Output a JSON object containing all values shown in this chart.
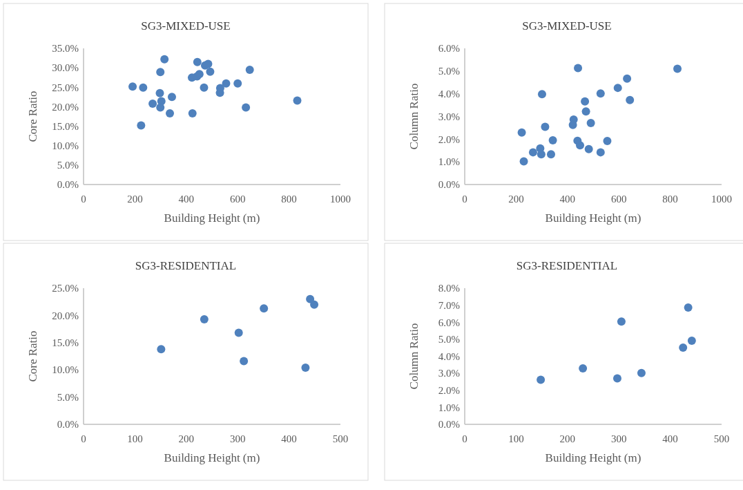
{
  "chart_data": [
    {
      "type": "scatter",
      "title": "SG3-MIXED-USE",
      "xlabel": "Building Height (m)",
      "ylabel": "Core Ratio",
      "marker": "circle",
      "xlim": [
        0,
        1000
      ],
      "xticks": [
        0,
        200,
        400,
        600,
        800,
        1000
      ],
      "ylim": [
        0,
        35
      ],
      "yticks": [
        {
          "value": 0,
          "label": "0.0%"
        },
        {
          "value": 5,
          "label": "5.0%"
        },
        {
          "value": 10,
          "label": "10.0%"
        },
        {
          "value": 15,
          "label": "15.0%"
        },
        {
          "value": 20,
          "label": "20.0%"
        },
        {
          "value": 25,
          "label": "25.0%"
        },
        {
          "value": 30,
          "label": "30.0%"
        },
        {
          "value": 35,
          "label": "35.0%"
        }
      ],
      "series": [
        {
          "color": "#4f81bd",
          "x": [
            191,
            232,
            315,
            299,
            297,
            269,
            303,
            299,
            344,
            336,
            224,
            443,
            422,
            442,
            451,
            473,
            485,
            493,
            469,
            424,
            532,
            531,
            555,
            600,
            647,
            632,
            832
          ],
          "values": [
            25.2,
            24.9,
            32.2,
            28.9,
            23.5,
            20.8,
            21.4,
            19.8,
            22.5,
            18.3,
            15.2,
            31.5,
            27.5,
            27.8,
            28.4,
            30.6,
            31.0,
            29.0,
            24.9,
            18.3,
            24.8,
            23.6,
            26.0,
            26.0,
            29.5,
            19.8,
            21.6
          ]
        }
      ]
    },
    {
      "type": "scatter",
      "title": "SG3-MIXED-USE",
      "xlabel": "Building Height (m)",
      "ylabel": "Column Ratio",
      "marker": "circle",
      "xlim": [
        0,
        1000
      ],
      "xticks": [
        0,
        200,
        400,
        600,
        800,
        1000
      ],
      "ylim": [
        0,
        6
      ],
      "yticks": [
        {
          "value": 0,
          "label": "0.0%"
        },
        {
          "value": 1,
          "label": "1.0%"
        },
        {
          "value": 2,
          "label": "2.0%"
        },
        {
          "value": 3,
          "label": "3.0%"
        },
        {
          "value": 4,
          "label": "4.0%"
        },
        {
          "value": 5,
          "label": "5.0%"
        },
        {
          "value": 6,
          "label": "6.0%"
        }
      ],
      "series": [
        {
          "color": "#4f81bd",
          "x": [
            441,
            828,
            632,
            596,
            529,
            301,
            643,
            468,
            472,
            424,
            421,
            491,
            313,
            222,
            343,
            439,
            449,
            555,
            483,
            294,
            266,
            298,
            336,
            529,
            230
          ],
          "values": [
            5.13,
            5.1,
            4.67,
            4.26,
            4.01,
            3.98,
            3.72,
            3.66,
            3.22,
            2.86,
            2.63,
            2.71,
            2.54,
            2.29,
            1.95,
            1.93,
            1.73,
            1.92,
            1.56,
            1.59,
            1.42,
            1.33,
            1.33,
            1.42,
            1.02
          ]
        }
      ]
    },
    {
      "type": "scatter",
      "title": "SG3-RESIDENTIAL",
      "xlabel": "Building Height (m)",
      "ylabel": "Core Ratio",
      "marker": "circle",
      "xlim": [
        0,
        500
      ],
      "xticks": [
        0,
        100,
        200,
        300,
        400,
        500
      ],
      "ylim": [
        0,
        25
      ],
      "yticks": [
        {
          "value": 0,
          "label": "0.0%"
        },
        {
          "value": 5,
          "label": "5.0%"
        },
        {
          "value": 10,
          "label": "10.0%"
        },
        {
          "value": 15,
          "label": "15.0%"
        },
        {
          "value": 20,
          "label": "20.0%"
        },
        {
          "value": 25,
          "label": "25.0%"
        }
      ],
      "series": [
        {
          "color": "#4f81bd",
          "x": [
            151,
            235,
            302,
            312,
            351,
            432,
            441,
            449
          ],
          "values": [
            13.8,
            19.3,
            16.8,
            11.6,
            21.3,
            10.4,
            23.0,
            22.0
          ]
        }
      ]
    },
    {
      "type": "scatter",
      "title": "SG3-RESIDENTIAL",
      "xlabel": "Building Height (m)",
      "ylabel": "Column Ratio",
      "marker": "circle",
      "xlim": [
        0,
        500
      ],
      "xticks": [
        0,
        100,
        200,
        300,
        400,
        500
      ],
      "ylim": [
        0,
        8
      ],
      "yticks": [
        {
          "value": 0,
          "label": "0.0%"
        },
        {
          "value": 1,
          "label": "1.0%"
        },
        {
          "value": 2,
          "label": "2.0%"
        },
        {
          "value": 3,
          "label": "3.0%"
        },
        {
          "value": 4,
          "label": "4.0%"
        },
        {
          "value": 5,
          "label": "5.0%"
        },
        {
          "value": 6,
          "label": "6.0%"
        },
        {
          "value": 7,
          "label": "7.0%"
        },
        {
          "value": 8,
          "label": "8.0%"
        }
      ],
      "series": [
        {
          "color": "#4f81bd",
          "x": [
            148,
            230,
            297,
            305,
            344,
            425,
            442,
            435
          ],
          "values": [
            2.62,
            3.29,
            2.7,
            6.04,
            3.02,
            4.51,
            4.91,
            6.86
          ]
        }
      ]
    }
  ]
}
